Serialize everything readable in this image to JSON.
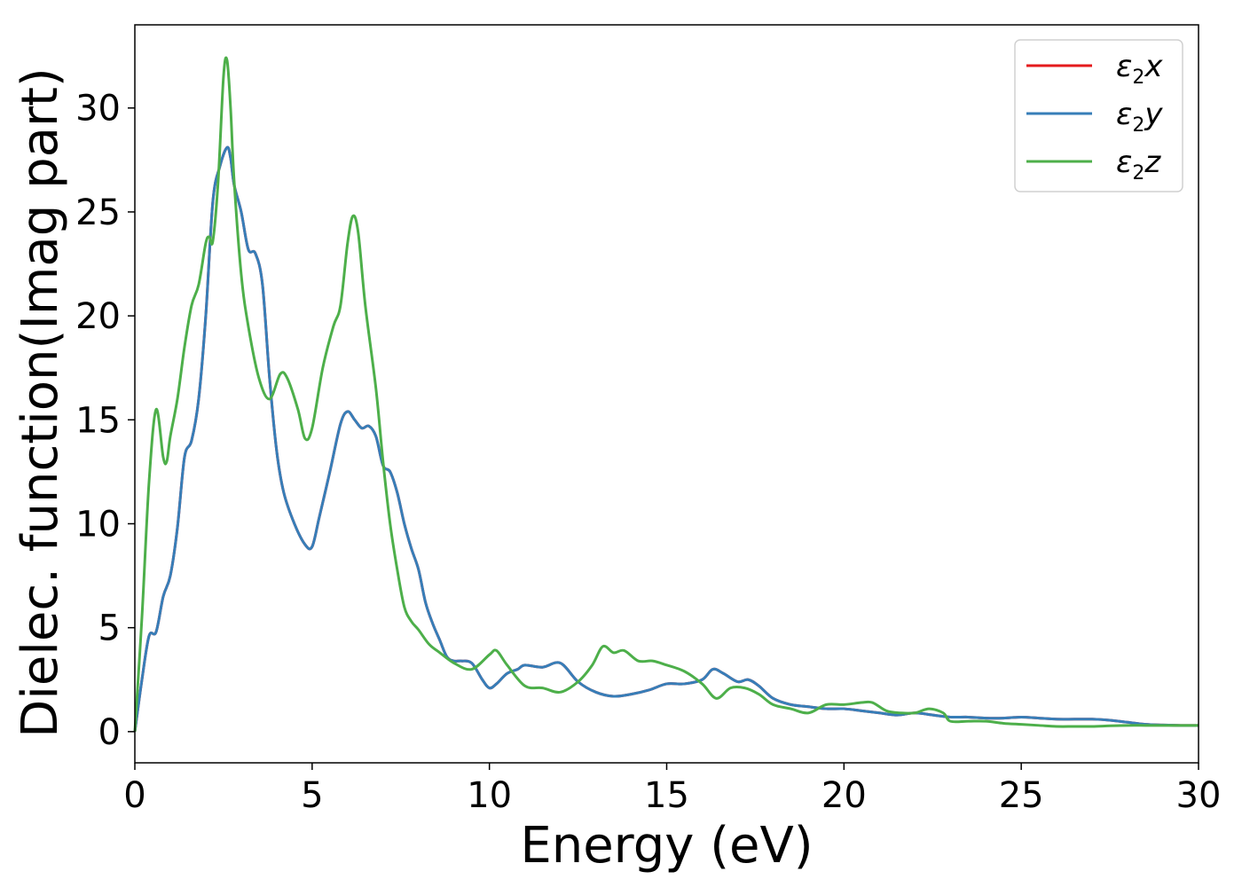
{
  "chart_data": {
    "type": "line",
    "title": "",
    "xlabel": "Energy (eV)",
    "ylabel": "Dielec. function(Imag part)",
    "xlim": [
      0,
      30
    ],
    "ylim": [
      -1.5,
      34
    ],
    "xticks": [
      0,
      5,
      10,
      15,
      20,
      25,
      30
    ],
    "yticks": [
      0,
      5,
      10,
      15,
      20,
      25,
      30
    ],
    "grid": false,
    "legend_position": "top-right",
    "series": [
      {
        "name": "ε2x",
        "legend_symbol": "ε",
        "legend_sub": "2",
        "legend_var": "x",
        "color": "#e41a1c",
        "x": [
          0,
          0.2,
          0.4,
          0.6,
          0.8,
          1.0,
          1.2,
          1.4,
          1.6,
          1.8,
          2.0,
          2.2,
          2.4,
          2.6,
          2.7,
          2.8,
          3.0,
          3.2,
          3.4,
          3.6,
          3.8,
          4.0,
          4.2,
          4.5,
          4.8,
          5.0,
          5.2,
          5.5,
          5.8,
          6.0,
          6.2,
          6.4,
          6.6,
          6.8,
          7.0,
          7.2,
          7.4,
          7.6,
          7.8,
          8.0,
          8.2,
          8.4,
          8.6,
          8.8,
          9.0,
          9.2,
          9.5,
          9.8,
          10.0,
          10.2,
          10.5,
          10.8,
          11.0,
          11.5,
          12.0,
          12.5,
          13.0,
          13.5,
          14.0,
          14.5,
          15.0,
          15.5,
          16.0,
          16.3,
          16.6,
          17.0,
          17.3,
          17.6,
          18.0,
          18.5,
          19.0,
          19.5,
          20.0,
          20.5,
          21.0,
          21.5,
          22.0,
          22.5,
          23.0,
          23.5,
          24.0,
          24.5,
          25.0,
          25.5,
          26.0,
          26.5,
          27.0,
          27.5,
          28.0,
          28.5,
          29.0,
          29.5,
          30.0
        ],
        "y": [
          0,
          2.5,
          4.6,
          4.8,
          6.5,
          7.5,
          9.8,
          13.2,
          14.0,
          16.0,
          20.0,
          25.5,
          27.2,
          28.1,
          27.6,
          26.3,
          25.0,
          23.2,
          23.0,
          21.5,
          17.0,
          13.5,
          11.5,
          10.0,
          9.0,
          8.9,
          10.3,
          12.5,
          14.8,
          15.4,
          15.0,
          14.6,
          14.7,
          14.2,
          12.8,
          12.5,
          11.5,
          10.0,
          8.8,
          7.8,
          6.2,
          5.2,
          4.4,
          3.6,
          3.4,
          3.4,
          3.3,
          2.5,
          2.1,
          2.3,
          2.8,
          3.0,
          3.2,
          3.1,
          3.3,
          2.4,
          1.9,
          1.7,
          1.8,
          2.0,
          2.3,
          2.3,
          2.5,
          3.0,
          2.8,
          2.4,
          2.5,
          2.2,
          1.6,
          1.3,
          1.2,
          1.1,
          1.1,
          1.0,
          0.9,
          0.8,
          0.9,
          0.8,
          0.7,
          0.7,
          0.65,
          0.65,
          0.7,
          0.65,
          0.6,
          0.6,
          0.6,
          0.55,
          0.45,
          0.35,
          0.32,
          0.3,
          0.3
        ]
      },
      {
        "name": "ε2y",
        "legend_symbol": "ε",
        "legend_sub": "2",
        "legend_var": "y",
        "color": "#377eb8",
        "x": [
          0,
          0.2,
          0.4,
          0.6,
          0.8,
          1.0,
          1.2,
          1.4,
          1.6,
          1.8,
          2.0,
          2.2,
          2.4,
          2.6,
          2.7,
          2.8,
          3.0,
          3.2,
          3.4,
          3.6,
          3.8,
          4.0,
          4.2,
          4.5,
          4.8,
          5.0,
          5.2,
          5.5,
          5.8,
          6.0,
          6.2,
          6.4,
          6.6,
          6.8,
          7.0,
          7.2,
          7.4,
          7.6,
          7.8,
          8.0,
          8.2,
          8.4,
          8.6,
          8.8,
          9.0,
          9.2,
          9.5,
          9.8,
          10.0,
          10.2,
          10.5,
          10.8,
          11.0,
          11.5,
          12.0,
          12.5,
          13.0,
          13.5,
          14.0,
          14.5,
          15.0,
          15.5,
          16.0,
          16.3,
          16.6,
          17.0,
          17.3,
          17.6,
          18.0,
          18.5,
          19.0,
          19.5,
          20.0,
          20.5,
          21.0,
          21.5,
          22.0,
          22.5,
          23.0,
          23.5,
          24.0,
          24.5,
          25.0,
          25.5,
          26.0,
          26.5,
          27.0,
          27.5,
          28.0,
          28.5,
          29.0,
          29.5,
          30.0
        ],
        "y": [
          0,
          2.5,
          4.6,
          4.8,
          6.5,
          7.5,
          9.8,
          13.2,
          14.0,
          16.0,
          20.0,
          25.5,
          27.2,
          28.1,
          27.6,
          26.3,
          25.0,
          23.2,
          23.0,
          21.5,
          17.0,
          13.5,
          11.5,
          10.0,
          9.0,
          8.9,
          10.3,
          12.5,
          14.8,
          15.4,
          15.0,
          14.6,
          14.7,
          14.2,
          12.8,
          12.5,
          11.5,
          10.0,
          8.8,
          7.8,
          6.2,
          5.2,
          4.4,
          3.6,
          3.4,
          3.4,
          3.3,
          2.5,
          2.1,
          2.3,
          2.8,
          3.0,
          3.2,
          3.1,
          3.3,
          2.4,
          1.9,
          1.7,
          1.8,
          2.0,
          2.3,
          2.3,
          2.5,
          3.0,
          2.8,
          2.4,
          2.5,
          2.2,
          1.6,
          1.3,
          1.2,
          1.1,
          1.1,
          1.0,
          0.9,
          0.8,
          0.9,
          0.8,
          0.7,
          0.7,
          0.65,
          0.65,
          0.7,
          0.65,
          0.6,
          0.6,
          0.6,
          0.55,
          0.45,
          0.35,
          0.32,
          0.3,
          0.3
        ]
      },
      {
        "name": "ε2z",
        "legend_symbol": "ε",
        "legend_sub": "2",
        "legend_var": "z",
        "color": "#4daf4a",
        "x": [
          0,
          0.2,
          0.4,
          0.6,
          0.8,
          0.9,
          1.0,
          1.2,
          1.4,
          1.6,
          1.8,
          2.0,
          2.1,
          2.2,
          2.35,
          2.5,
          2.6,
          2.7,
          2.8,
          3.0,
          3.2,
          3.5,
          3.8,
          4.1,
          4.3,
          4.6,
          4.8,
          5.0,
          5.3,
          5.6,
          5.8,
          6.0,
          6.15,
          6.3,
          6.5,
          6.8,
          7.0,
          7.2,
          7.4,
          7.6,
          7.8,
          8.0,
          8.3,
          8.6,
          9.0,
          9.5,
          10.0,
          10.2,
          10.5,
          11.0,
          11.5,
          12.0,
          12.5,
          12.9,
          13.2,
          13.5,
          13.8,
          14.2,
          14.6,
          15.0,
          15.5,
          16.0,
          16.4,
          16.8,
          17.2,
          17.6,
          18.0,
          18.5,
          19.0,
          19.5,
          20.0,
          20.5,
          20.8,
          21.2,
          21.6,
          22.0,
          22.4,
          22.8,
          23.0,
          23.5,
          24.0,
          24.5,
          25.0,
          25.5,
          26.0,
          26.5,
          27.0,
          27.5,
          28.0,
          28.5,
          29.0,
          29.5,
          30.0
        ],
        "y": [
          0,
          5.5,
          12.0,
          15.5,
          13.2,
          13.0,
          14.2,
          16.0,
          18.5,
          20.5,
          21.5,
          23.5,
          23.8,
          23.6,
          26.5,
          31.5,
          32.3,
          30.0,
          26.5,
          22.0,
          19.5,
          17.0,
          16.0,
          17.2,
          17.0,
          15.5,
          14.1,
          14.6,
          17.5,
          19.5,
          20.5,
          23.5,
          24.8,
          24.0,
          20.5,
          16.5,
          13.0,
          10.0,
          7.8,
          6.0,
          5.3,
          4.9,
          4.2,
          3.8,
          3.3,
          3.0,
          3.7,
          3.9,
          3.2,
          2.2,
          2.1,
          1.9,
          2.4,
          3.2,
          4.1,
          3.8,
          3.9,
          3.4,
          3.4,
          3.2,
          2.9,
          2.3,
          1.6,
          2.1,
          2.1,
          1.8,
          1.3,
          1.1,
          0.9,
          1.3,
          1.3,
          1.4,
          1.4,
          1.0,
          0.9,
          0.9,
          1.1,
          0.9,
          0.5,
          0.5,
          0.5,
          0.4,
          0.35,
          0.3,
          0.25,
          0.25,
          0.25,
          0.28,
          0.3,
          0.3,
          0.3,
          0.3,
          0.3
        ]
      }
    ]
  }
}
